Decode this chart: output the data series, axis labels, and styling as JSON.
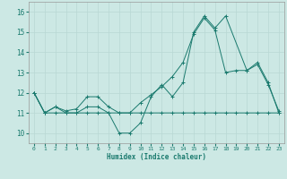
{
  "xlabel": "Humidex (Indice chaleur)",
  "background_color": "#cce8e4",
  "grid_color": "#b8d8d4",
  "line_color": "#1a7a6e",
  "xlim": [
    -0.5,
    23.5
  ],
  "ylim": [
    9.5,
    16.5
  ],
  "yticks": [
    10,
    11,
    12,
    13,
    14,
    15,
    16
  ],
  "xticks": [
    0,
    1,
    2,
    3,
    4,
    5,
    6,
    7,
    8,
    9,
    10,
    11,
    12,
    13,
    14,
    15,
    16,
    17,
    18,
    19,
    20,
    21,
    22,
    23
  ],
  "series1_x": [
    0,
    1,
    2,
    3,
    4,
    5,
    6,
    7,
    8,
    9,
    10,
    11,
    12,
    13,
    14,
    15,
    16,
    17,
    18,
    20,
    21,
    22,
    23
  ],
  "series1_y": [
    12.0,
    11.0,
    11.3,
    11.0,
    11.0,
    11.3,
    11.3,
    11.0,
    10.0,
    10.0,
    10.5,
    11.8,
    12.4,
    11.8,
    12.5,
    15.0,
    15.8,
    15.2,
    15.8,
    13.1,
    13.5,
    12.5,
    11.0
  ],
  "series2_x": [
    0,
    1,
    2,
    3,
    4,
    5,
    6,
    7,
    8,
    9,
    10,
    11,
    12,
    13,
    14,
    15,
    16,
    17,
    18,
    19,
    20,
    21,
    22,
    23
  ],
  "series2_y": [
    12.0,
    11.0,
    11.3,
    11.1,
    11.2,
    11.8,
    11.8,
    11.3,
    11.0,
    11.0,
    11.5,
    11.9,
    12.3,
    12.8,
    13.5,
    14.9,
    15.7,
    15.1,
    13.0,
    13.1,
    13.1,
    13.4,
    12.4,
    11.1
  ],
  "series3_x": [
    0,
    1,
    2,
    3,
    4,
    5,
    6,
    7,
    8,
    9,
    10,
    11,
    12,
    13,
    14,
    15,
    16,
    17,
    18,
    19,
    20,
    21,
    22,
    23
  ],
  "series3_y": [
    12.0,
    11.0,
    11.0,
    11.0,
    11.0,
    11.0,
    11.0,
    11.0,
    11.0,
    11.0,
    11.0,
    11.0,
    11.0,
    11.0,
    11.0,
    11.0,
    11.0,
    11.0,
    11.0,
    11.0,
    11.0,
    11.0,
    11.0,
    11.0
  ]
}
